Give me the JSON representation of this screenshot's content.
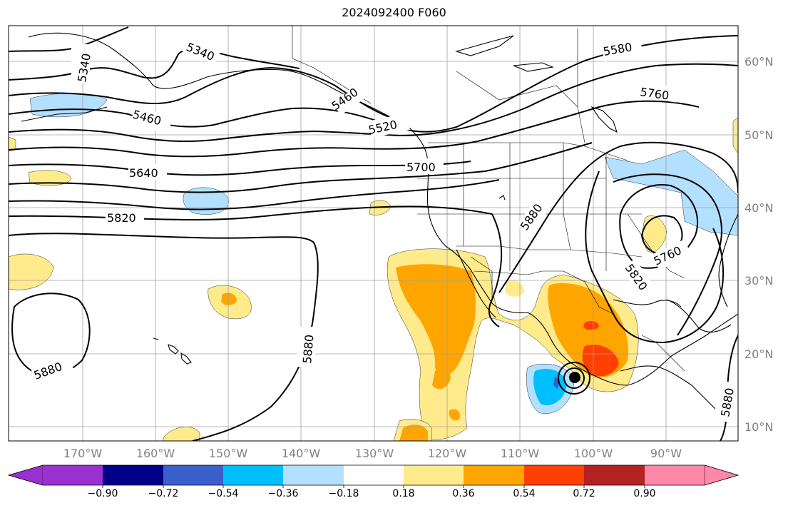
{
  "title": "2024092400 F060",
  "lat_labels": [
    "60°N",
    "50°N",
    "40°N",
    "30°N",
    "20°N",
    "10°N"
  ],
  "lon_labels": [
    "170°W",
    "160°W",
    "150°W",
    "140°W",
    "130°W",
    "120°W",
    "110°W",
    "100°W",
    "90°W"
  ],
  "contour_labels": [
    "5340",
    "5340",
    "5460",
    "5460",
    "5520",
    "5580",
    "5640",
    "5700",
    "5760",
    "5760",
    "5820",
    "5820",
    "5880",
    "5880",
    "5880",
    "5880"
  ],
  "colorbar": {
    "ticks": [
      "−0.90",
      "−0.72",
      "−0.54",
      "−0.36",
      "−0.18",
      "0.18",
      "0.36",
      "0.54",
      "0.72",
      "0.90"
    ],
    "colors": [
      "#9b30d0",
      "#000088",
      "#3a5fcd",
      "#00bfff",
      "#b3e0ff",
      "#ffffff",
      "#ffeb8c",
      "#ffa500",
      "#ff4000",
      "#b22222",
      "#ff88aa"
    ]
  },
  "colors": {
    "grid": "#a0a0a0",
    "contour": "#000000",
    "axis_label": "#808080"
  }
}
